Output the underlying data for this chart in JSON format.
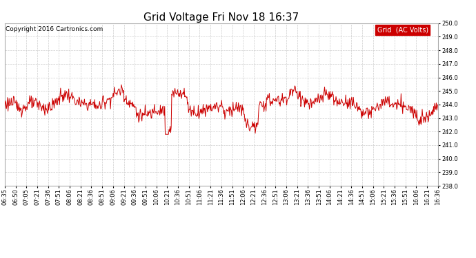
{
  "title": "Grid Voltage Fri Nov 18 16:37",
  "copyright": "Copyright 2016 Cartronics.com",
  "legend_label": "Grid  (AC Volts)",
  "legend_bg": "#cc0000",
  "legend_text_color": "#ffffff",
  "line_color": "#cc0000",
  "background_color": "#ffffff",
  "grid_color": "#c8c8c8",
  "ylim": [
    238.0,
    250.0
  ],
  "yticks": [
    238.0,
    239.0,
    240.0,
    241.0,
    242.0,
    243.0,
    244.0,
    245.0,
    246.0,
    247.0,
    248.0,
    249.0,
    250.0
  ],
  "x_tick_labels": [
    "06:35",
    "06:50",
    "07:05",
    "07:21",
    "07:36",
    "07:51",
    "08:06",
    "08:21",
    "08:36",
    "08:51",
    "09:06",
    "09:21",
    "09:36",
    "09:51",
    "10:06",
    "10:21",
    "10:36",
    "10:51",
    "11:06",
    "11:21",
    "11:36",
    "11:51",
    "12:06",
    "12:21",
    "12:36",
    "12:51",
    "13:06",
    "13:21",
    "13:36",
    "13:51",
    "14:06",
    "14:21",
    "14:36",
    "14:51",
    "15:06",
    "15:21",
    "15:36",
    "15:51",
    "16:06",
    "16:21",
    "16:36"
  ],
  "title_fontsize": 11,
  "tick_fontsize": 6,
  "copyright_fontsize": 6.5,
  "legend_fontsize": 7,
  "line_width": 0.7
}
